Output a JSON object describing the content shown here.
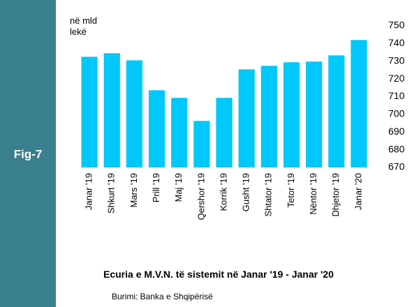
{
  "chart_data": {
    "type": "bar",
    "figure_label": "Fig-7",
    "unit_label": "në mld lekë",
    "title": "Ecuria e M.V.N. të sistemit në Janar '19 - Janar '20",
    "source": "Burimi: Banka e Shqipërisë",
    "categories": [
      "Janar '19",
      "Shkurt '19",
      "Mars '19",
      "Prill '19",
      "Maj '19",
      "Qershor '19",
      "Korrik '19",
      "Gusht '19",
      "Shtator '19",
      "Tetor '19",
      "Nëntor '19",
      "Dhjetor '19",
      "Janar '20"
    ],
    "values": [
      732.5,
      734.5,
      730.5,
      713.6,
      709.3,
      696.3,
      709.3,
      725.4,
      727.4,
      729.4,
      729.8,
      733.3,
      742.0
    ],
    "color": "#00c8fa",
    "ylim": [
      670,
      750
    ],
    "yticks": [
      670,
      680,
      690,
      700,
      710,
      720,
      730,
      740,
      750
    ],
    "y_axis_side": "right",
    "grid": false
  }
}
